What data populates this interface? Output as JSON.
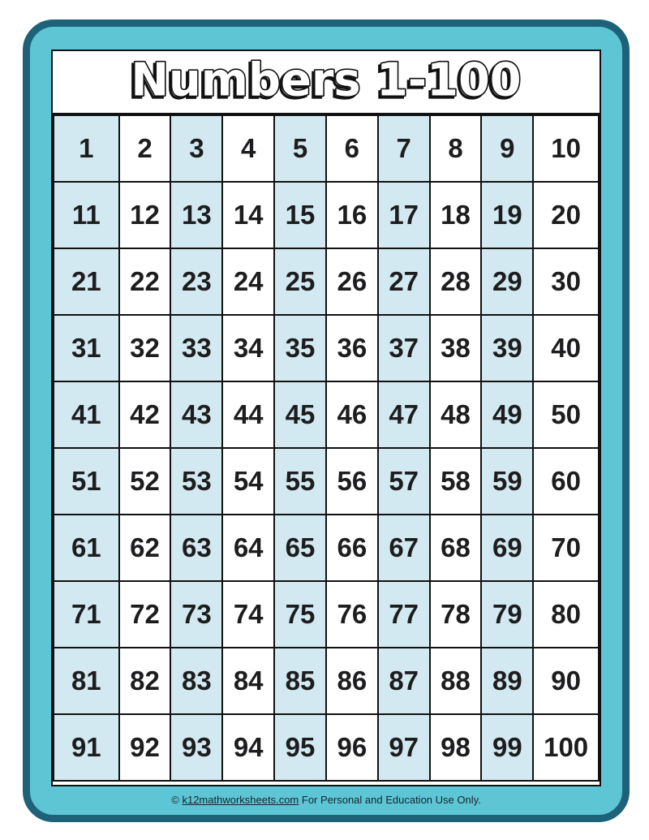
{
  "page_title": "Numbers 1-100",
  "grid": {
    "rows": [
      [
        1,
        2,
        3,
        4,
        5,
        6,
        7,
        8,
        9,
        10
      ],
      [
        11,
        12,
        13,
        14,
        15,
        16,
        17,
        18,
        19,
        20
      ],
      [
        21,
        22,
        23,
        24,
        25,
        26,
        27,
        28,
        29,
        30
      ],
      [
        31,
        32,
        33,
        34,
        35,
        36,
        37,
        38,
        39,
        40
      ],
      [
        41,
        42,
        43,
        44,
        45,
        46,
        47,
        48,
        49,
        50
      ],
      [
        51,
        52,
        53,
        54,
        55,
        56,
        57,
        58,
        59,
        60
      ],
      [
        61,
        62,
        63,
        64,
        65,
        66,
        67,
        68,
        69,
        70
      ],
      [
        71,
        72,
        73,
        74,
        75,
        76,
        77,
        78,
        79,
        80
      ],
      [
        81,
        82,
        83,
        84,
        85,
        86,
        87,
        88,
        89,
        90
      ],
      [
        91,
        92,
        93,
        94,
        95,
        96,
        97,
        98,
        99,
        100
      ]
    ],
    "shaded_columns": [
      1,
      3,
      5,
      7,
      9
    ]
  },
  "footer": {
    "symbol": "©",
    "link": "k12mathworksheets.com",
    "text": "For Personal and Education Use Only."
  },
  "colors": {
    "frame_border": "#1d6278",
    "frame_fill": "#5ec5d4",
    "cell_shaded": "#d3e9f2",
    "grid_line": "#111111",
    "number": "#1d1d1f",
    "footer_text": "#16262e",
    "title_fill": "#ffffff",
    "title_outline": "#111111"
  }
}
